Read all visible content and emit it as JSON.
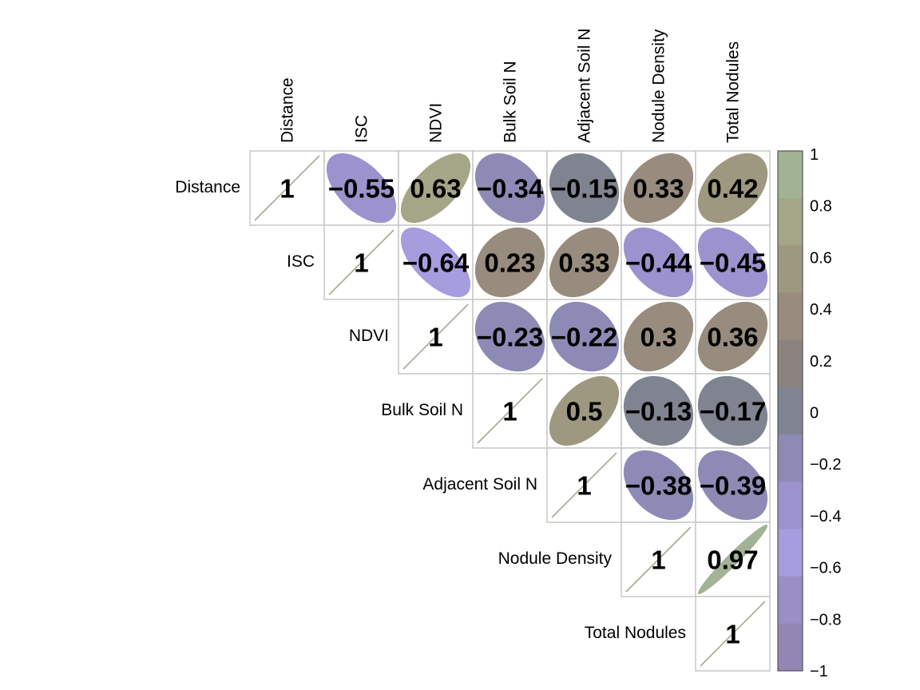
{
  "chart_data": {
    "type": "heatmap",
    "variables": [
      "Distance",
      "ISC",
      "NDVI",
      "Bulk Soil N",
      "Adjacent Soil N",
      "Nodule Density",
      "Total Nodules"
    ],
    "upper_triangle": true,
    "matrix": [
      [
        1,
        -0.55,
        0.63,
        -0.34,
        -0.15,
        0.33,
        0.42
      ],
      [
        null,
        1,
        -0.64,
        0.23,
        0.33,
        -0.44,
        -0.45
      ],
      [
        null,
        null,
        1,
        -0.23,
        -0.22,
        0.3,
        0.36
      ],
      [
        null,
        null,
        null,
        1,
        0.5,
        -0.13,
        -0.17
      ],
      [
        null,
        null,
        null,
        null,
        1,
        -0.38,
        -0.39
      ],
      [
        null,
        null,
        null,
        null,
        null,
        1,
        0.97
      ],
      [
        null,
        null,
        null,
        null,
        null,
        null,
        1
      ]
    ],
    "value_labels": [
      [
        "1",
        "−0.55",
        "0.63",
        "−0.34",
        "−0.15",
        "0.33",
        "0.42"
      ],
      [
        null,
        "1",
        "−0.64",
        "0.23",
        "0.33",
        "−0.44",
        "−0.45"
      ],
      [
        null,
        null,
        "1",
        "−0.23",
        "−0.22",
        "0.3",
        "0.36"
      ],
      [
        null,
        null,
        null,
        "1",
        "0.5",
        "−0.13",
        "−0.17"
      ],
      [
        null,
        null,
        null,
        null,
        "1",
        "−0.38",
        "−0.39"
      ],
      [
        null,
        null,
        null,
        null,
        null,
        "1",
        "0.97"
      ],
      [
        null,
        null,
        null,
        null,
        null,
        null,
        "1"
      ]
    ],
    "colorbar": {
      "range": [
        -1,
        1
      ],
      "ticks": [
        "1",
        "0.8",
        "0.6",
        "0.4",
        "0.2",
        "0",
        "−0.2",
        "−0.4",
        "−0.6",
        "−0.8",
        "−1"
      ],
      "bins": [
        "#a1b394",
        "#a4a687",
        "#9f9880",
        "#978c7d",
        "#8c8380",
        "#808490",
        "#8d8bb5",
        "#9c92cd",
        "#a69ddf",
        "#9a8ec6",
        "#9486b4"
      ]
    },
    "legend_placement": "right"
  }
}
